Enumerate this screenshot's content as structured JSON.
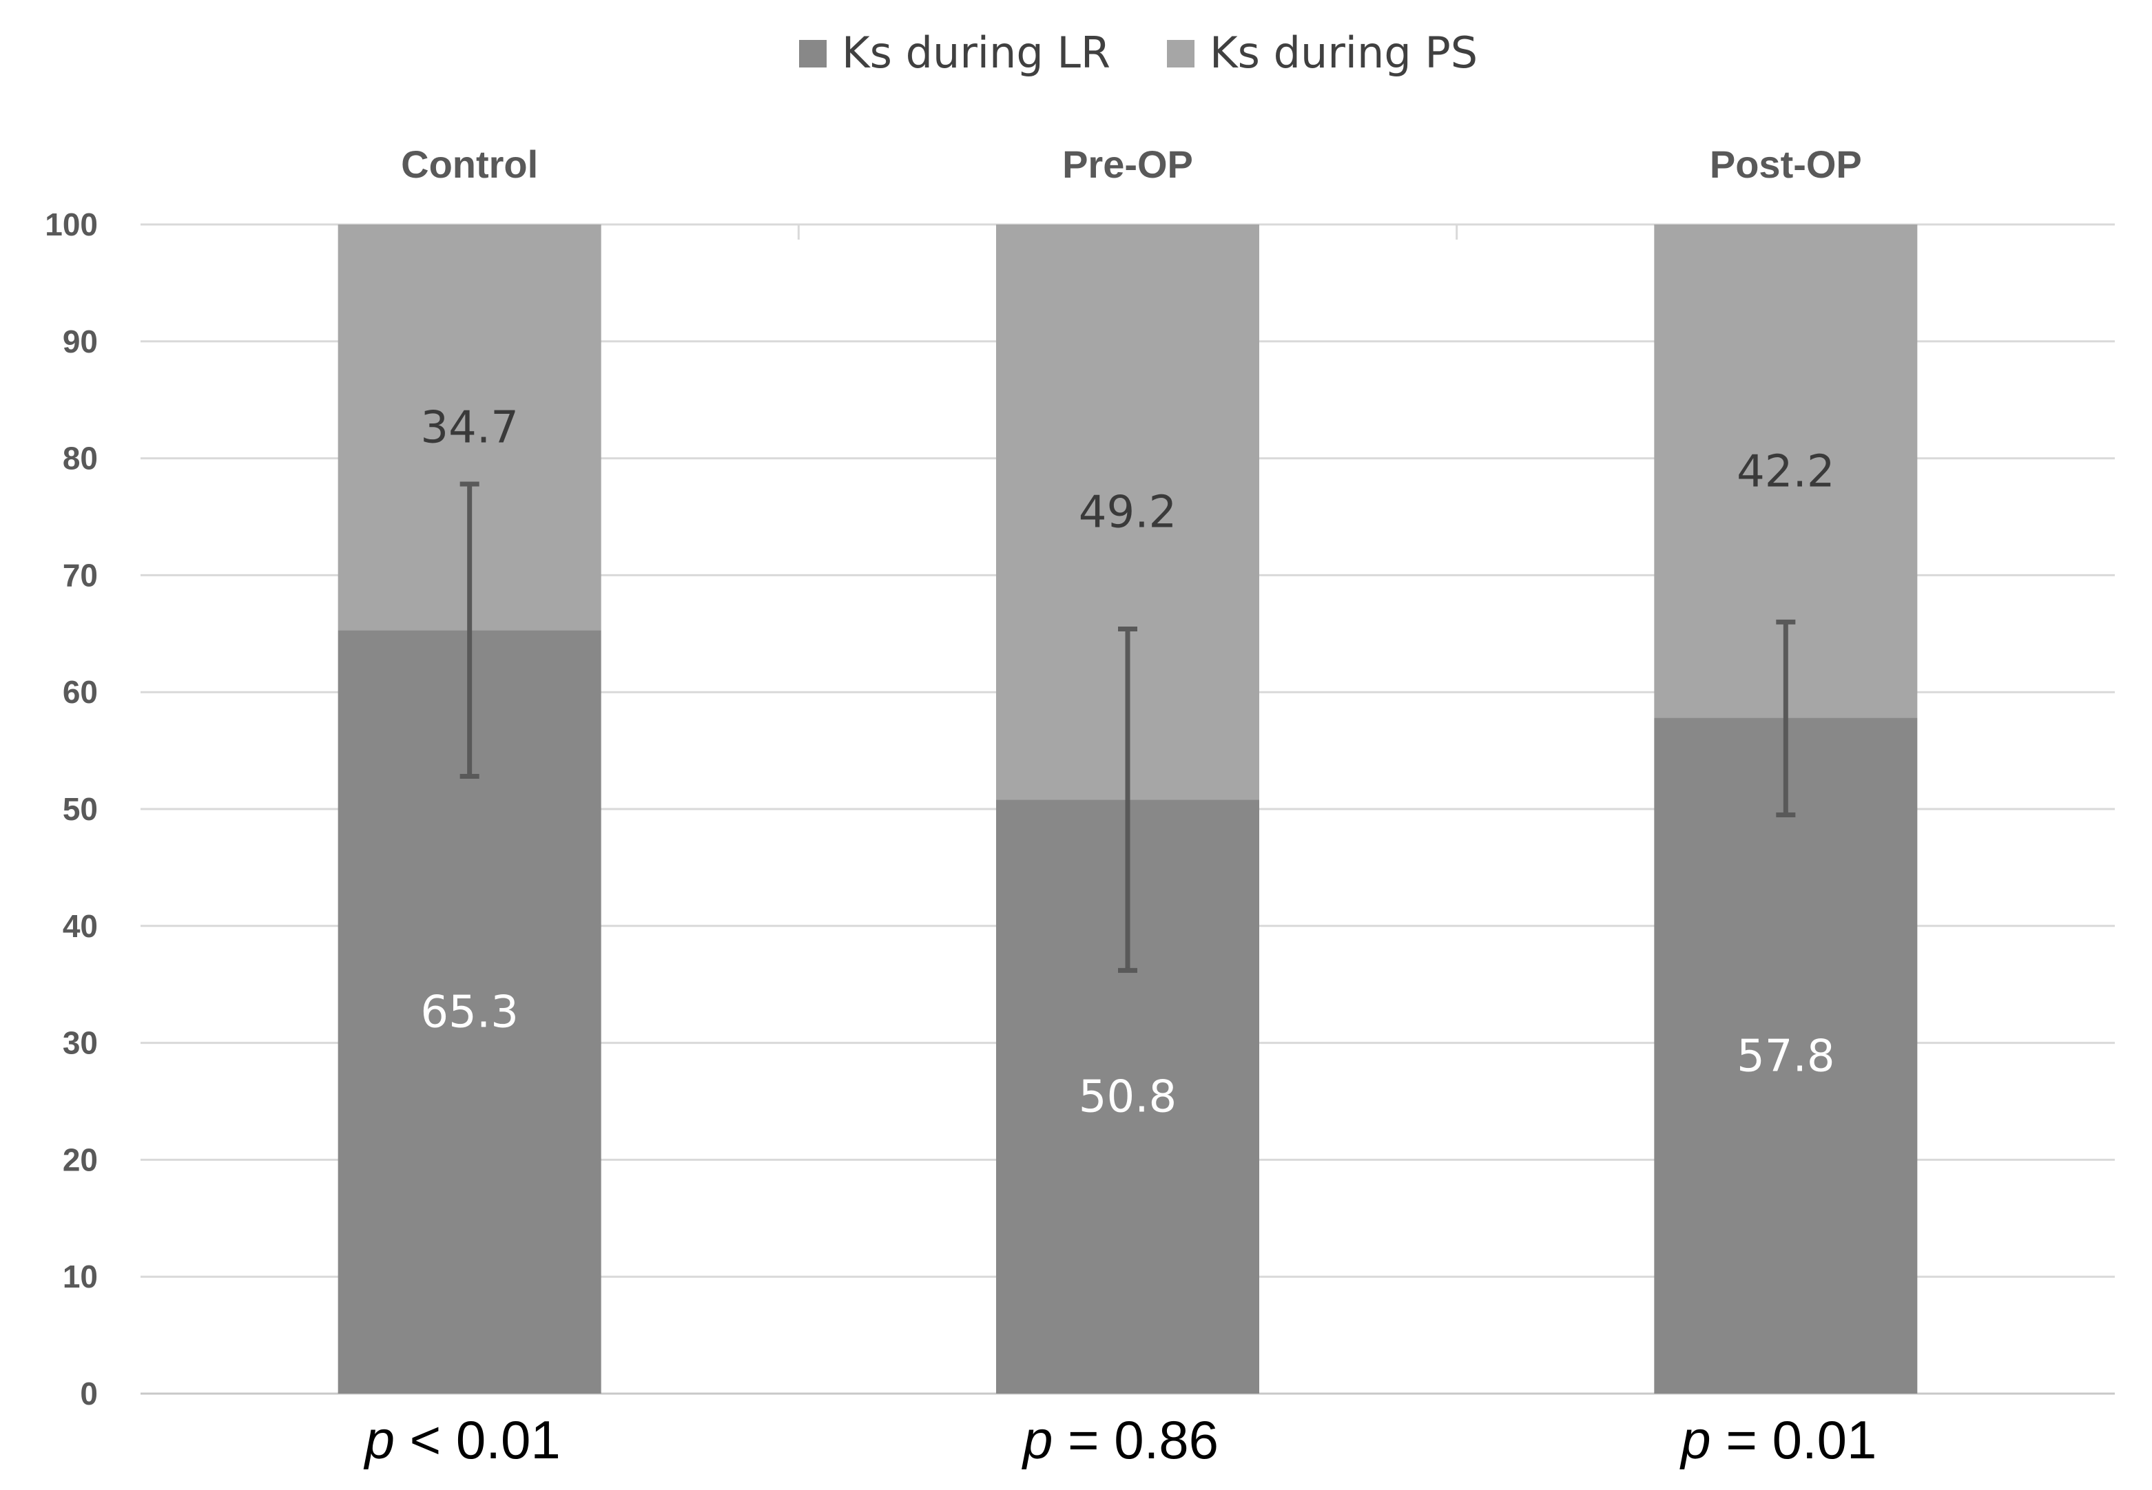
{
  "chart_data": {
    "type": "bar",
    "stacked": true,
    "categories": [
      "Control",
      "Pre-OP",
      "Post-OP"
    ],
    "series": [
      {
        "name": "Ks during LR",
        "values": [
          65.3,
          50.8,
          57.8
        ],
        "color": "#888888"
      },
      {
        "name": "Ks during PS",
        "values": [
          34.7,
          49.2,
          42.2
        ],
        "color": "#a6a6a6"
      }
    ],
    "error_bars": [
      {
        "low": 52.8,
        "high": 77.8
      },
      {
        "low": 36.2,
        "high": 65.4
      },
      {
        "low": 49.5,
        "high": 66.0
      }
    ],
    "ylim": [
      0,
      100
    ],
    "yticks": [
      "0",
      "10",
      "20",
      "30",
      "40",
      "50",
      "60",
      "70",
      "80",
      "90",
      "100"
    ],
    "p_values": [
      {
        "symbol": "p",
        "text": " < 0.01"
      },
      {
        "symbol": "p",
        "text": " = 0.86"
      },
      {
        "symbol": "p",
        "text": " = 0.01"
      }
    ],
    "legend_position": "top-center",
    "grid": true,
    "gridline_color": "#d9d9d9",
    "error_bar_color": "#595959"
  }
}
